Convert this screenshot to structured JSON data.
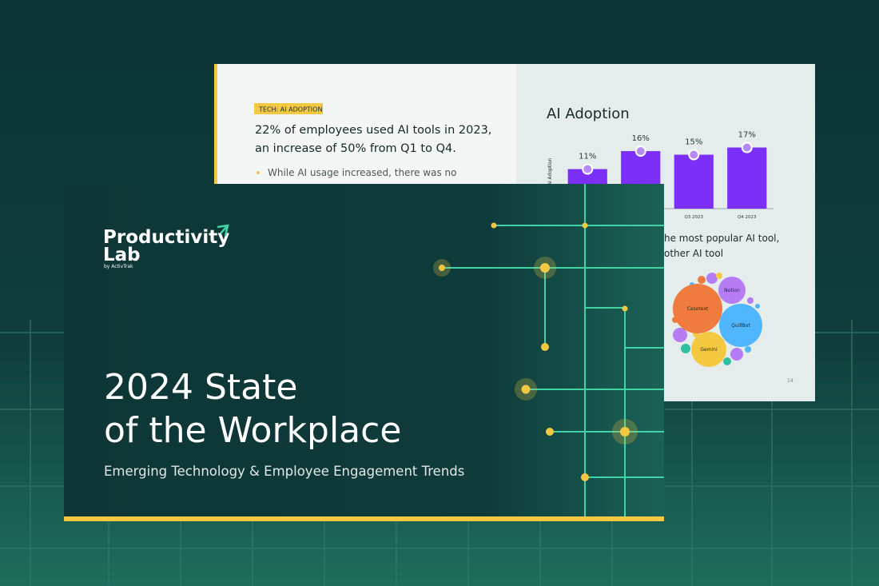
{
  "cover": {
    "logo": [
      "Productivity",
      "Lab"
    ],
    "logo_byline": "by ActivTrak",
    "title": [
      "2024 State",
      "of the Workplace"
    ],
    "subtitle": "Emerging Technology & Employee Engagement Trends"
  },
  "report_page": {
    "tag": "TECH: AI ADOPTION",
    "headline": [
      "22% of employees used AI tools in 2023,",
      "an increase of 50% from Q1 to Q4."
    ],
    "bullet": "While AI usage increased, there was no",
    "right_text": [
      "he most popular AI tool,",
      "other AI tool"
    ],
    "bubble_labels": [
      "Casetext",
      "Notion",
      "QuillBot",
      "Gemini"
    ],
    "page_number": "14"
  },
  "chart_data": {
    "type": "bar",
    "title": "AI Adoption",
    "y_label": "AI Adoption",
    "categories": [
      null,
      null,
      "Q3 2023",
      "Q4 2023"
    ],
    "values": [
      11,
      16,
      15,
      17
    ],
    "value_labels": [
      "11%",
      "16%",
      "15%",
      "17%"
    ],
    "color": "#7b2ff7",
    "ylim": [
      0,
      25
    ]
  }
}
